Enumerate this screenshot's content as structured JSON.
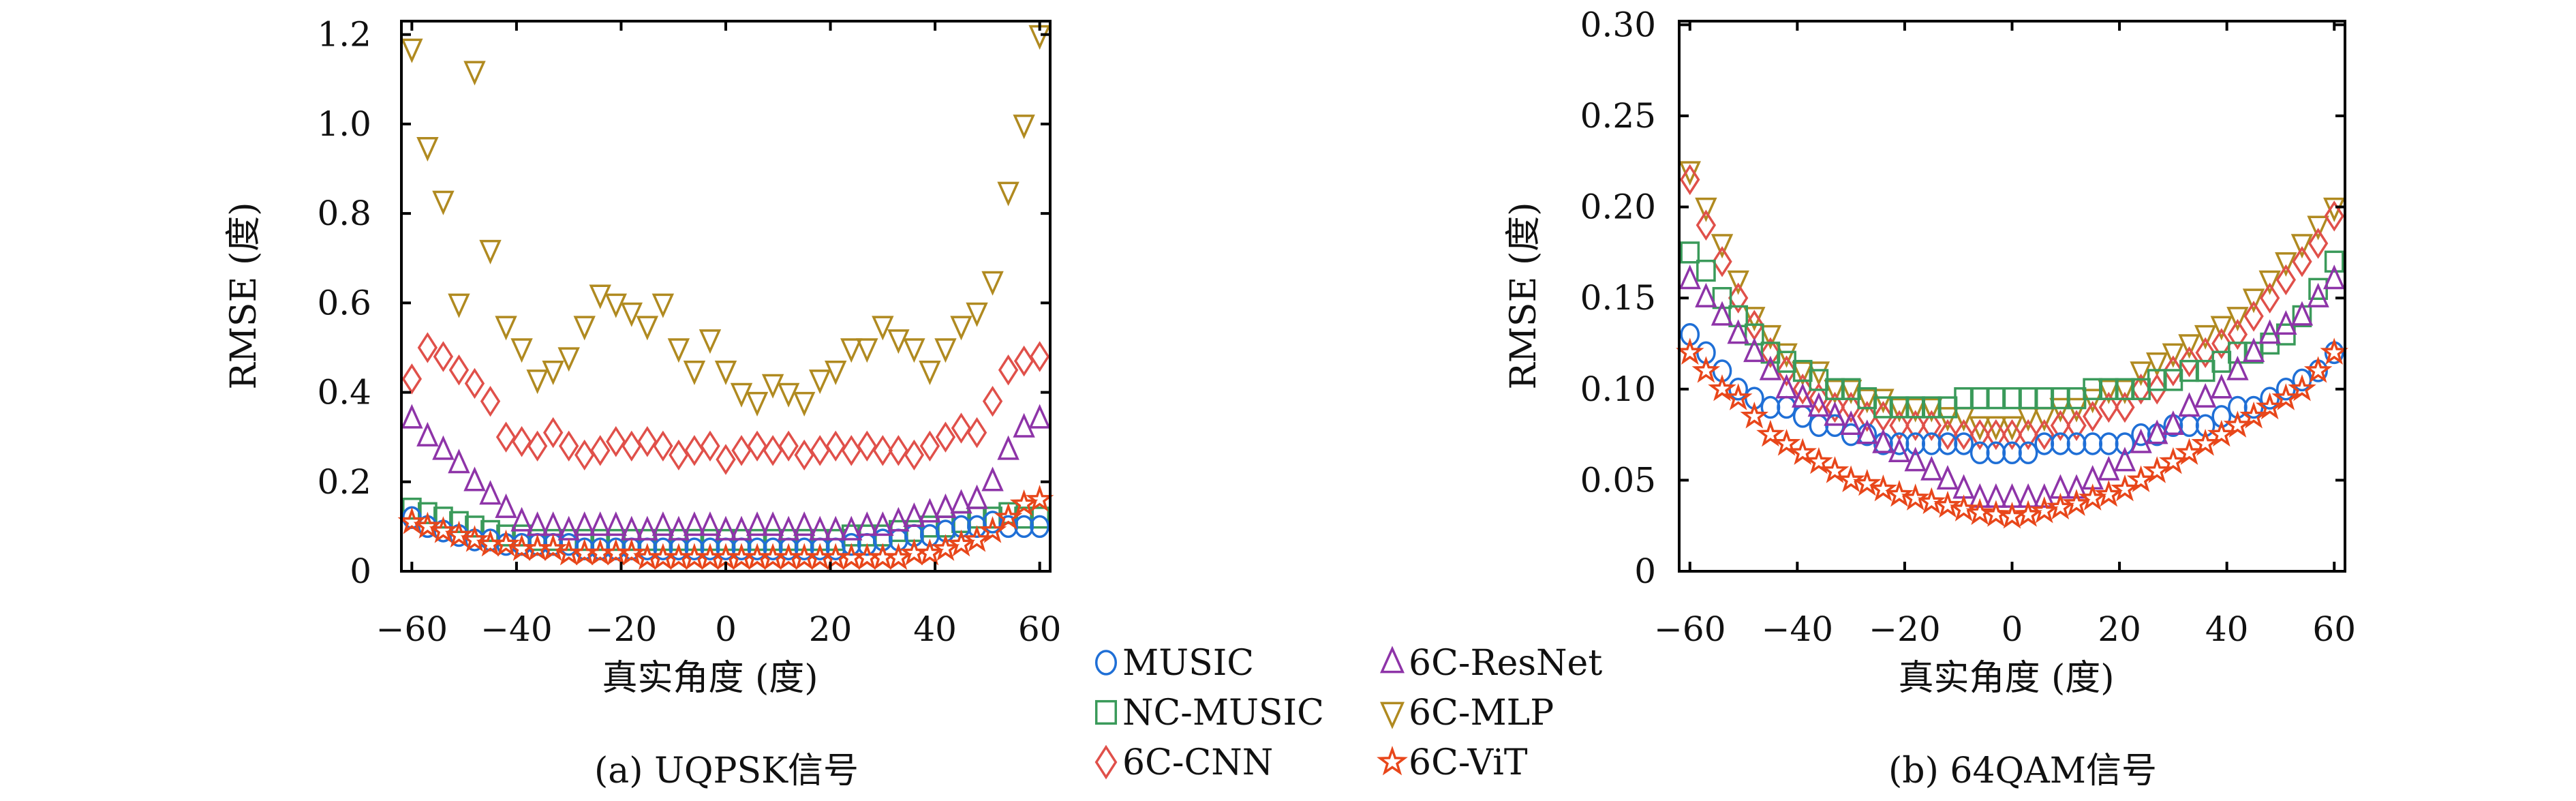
{
  "colors": {
    "MUSIC": "#1f6fd6",
    "NC-MUSIC": "#3a9a5a",
    "6C-CNN": "#e0504a",
    "6C-ResNet": "#8e34a8",
    "6C-MLP": "#b08a20",
    "6C-ViT": "#e8461a"
  },
  "legend": [
    {
      "name": "MUSIC",
      "marker": "circle"
    },
    {
      "name": "NC-MUSIC",
      "marker": "square"
    },
    {
      "name": "6C-CNN",
      "marker": "diamond"
    },
    {
      "name": "6C-ResNet",
      "marker": "triangle-up"
    },
    {
      "name": "6C-MLP",
      "marker": "triangle-down"
    },
    {
      "name": "6C-ViT",
      "marker": "star"
    }
  ],
  "chart_data": [
    {
      "type": "scatter",
      "caption": "(a) UQPSK信号",
      "xlabel": "真实角度 (度)",
      "ylabel": "RMSE (度)",
      "xlim": [
        -62,
        62
      ],
      "ylim": [
        0,
        1.23
      ],
      "xticks": [
        -60,
        -40,
        -20,
        0,
        20,
        40,
        60
      ],
      "xtick_labels": [
        "−60",
        "−40",
        "−20",
        "0",
        "20",
        "40",
        "60"
      ],
      "yticks": [
        0,
        0.2,
        0.4,
        0.6,
        0.8,
        1.0,
        1.2
      ],
      "ytick_labels": [
        "0",
        "0.2",
        "0.4",
        "0.6",
        "0.8",
        "1.0",
        "1.2"
      ],
      "x": [
        -60,
        -57,
        -54,
        -51,
        -48,
        -45,
        -42,
        -39,
        -36,
        -33,
        -30,
        -27,
        -24,
        -21,
        -18,
        -15,
        -12,
        -9,
        -6,
        -3,
        0,
        3,
        6,
        9,
        12,
        15,
        18,
        21,
        24,
        27,
        30,
        33,
        36,
        39,
        42,
        45,
        48,
        51,
        54,
        57,
        60
      ],
      "series": [
        {
          "name": "MUSIC",
          "values": [
            0.12,
            0.1,
            0.09,
            0.08,
            0.07,
            0.07,
            0.06,
            0.06,
            0.06,
            0.06,
            0.06,
            0.05,
            0.05,
            0.05,
            0.05,
            0.05,
            0.05,
            0.05,
            0.05,
            0.05,
            0.05,
            0.05,
            0.05,
            0.05,
            0.05,
            0.05,
            0.05,
            0.05,
            0.06,
            0.06,
            0.07,
            0.07,
            0.08,
            0.08,
            0.09,
            0.1,
            0.1,
            0.11,
            0.1,
            0.1,
            0.1
          ]
        },
        {
          "name": "NC-MUSIC",
          "values": [
            0.14,
            0.13,
            0.12,
            0.11,
            0.1,
            0.09,
            0.08,
            0.08,
            0.07,
            0.07,
            0.07,
            0.07,
            0.07,
            0.07,
            0.07,
            0.07,
            0.07,
            0.07,
            0.07,
            0.07,
            0.07,
            0.07,
            0.07,
            0.07,
            0.07,
            0.07,
            0.07,
            0.07,
            0.08,
            0.08,
            0.08,
            0.09,
            0.09,
            0.1,
            0.1,
            0.11,
            0.12,
            0.12,
            0.13,
            0.12,
            0.12
          ]
        },
        {
          "name": "6C-CNN",
          "values": [
            0.43,
            0.5,
            0.48,
            0.45,
            0.42,
            0.38,
            0.3,
            0.29,
            0.28,
            0.31,
            0.28,
            0.26,
            0.27,
            0.29,
            0.28,
            0.29,
            0.28,
            0.26,
            0.27,
            0.28,
            0.25,
            0.27,
            0.28,
            0.27,
            0.28,
            0.26,
            0.27,
            0.28,
            0.27,
            0.28,
            0.27,
            0.27,
            0.26,
            0.28,
            0.3,
            0.32,
            0.31,
            0.38,
            0.45,
            0.47,
            0.48
          ]
        },
        {
          "name": "6C-ResNet",
          "values": [
            0.34,
            0.3,
            0.27,
            0.24,
            0.2,
            0.17,
            0.14,
            0.11,
            0.1,
            0.1,
            0.09,
            0.1,
            0.1,
            0.1,
            0.09,
            0.09,
            0.1,
            0.09,
            0.1,
            0.1,
            0.09,
            0.09,
            0.1,
            0.1,
            0.09,
            0.1,
            0.09,
            0.09,
            0.09,
            0.1,
            0.1,
            0.11,
            0.12,
            0.13,
            0.14,
            0.15,
            0.16,
            0.2,
            0.27,
            0.32,
            0.34
          ]
        },
        {
          "name": "6C-MLP",
          "values": [
            1.17,
            0.95,
            0.83,
            0.6,
            1.12,
            0.72,
            0.55,
            0.5,
            0.43,
            0.45,
            0.48,
            0.55,
            0.62,
            0.6,
            0.58,
            0.55,
            0.6,
            0.5,
            0.45,
            0.52,
            0.45,
            0.4,
            0.38,
            0.42,
            0.4,
            0.38,
            0.43,
            0.45,
            0.5,
            0.5,
            0.55,
            0.52,
            0.5,
            0.45,
            0.5,
            0.55,
            0.58,
            0.65,
            0.85,
            1.0,
            1.2
          ]
        },
        {
          "name": "6C-ViT",
          "values": [
            0.11,
            0.1,
            0.09,
            0.08,
            0.07,
            0.06,
            0.06,
            0.05,
            0.05,
            0.05,
            0.04,
            0.04,
            0.04,
            0.04,
            0.04,
            0.03,
            0.03,
            0.03,
            0.03,
            0.03,
            0.03,
            0.03,
            0.03,
            0.03,
            0.03,
            0.03,
            0.03,
            0.03,
            0.03,
            0.03,
            0.03,
            0.03,
            0.04,
            0.04,
            0.05,
            0.06,
            0.07,
            0.09,
            0.12,
            0.15,
            0.16
          ]
        }
      ]
    },
    {
      "type": "scatter",
      "caption": "(b) 64QAM信号",
      "xlabel": "真实角度 (度)",
      "ylabel": "RMSE (度)",
      "xlim": [
        -62,
        62
      ],
      "ylim": [
        0,
        0.302
      ],
      "xticks": [
        -60,
        -40,
        -20,
        0,
        20,
        40,
        60
      ],
      "xtick_labels": [
        "−60",
        "−40",
        "−20",
        "0",
        "20",
        "40",
        "60"
      ],
      "yticks": [
        0,
        0.05,
        0.1,
        0.15,
        0.2,
        0.25,
        0.3
      ],
      "ytick_labels": [
        "0",
        "0.05",
        "0.10",
        "0.15",
        "0.20",
        "0.25",
        "0.30"
      ],
      "x": [
        -60,
        -57,
        -54,
        -51,
        -48,
        -45,
        -42,
        -39,
        -36,
        -33,
        -30,
        -27,
        -24,
        -21,
        -18,
        -15,
        -12,
        -9,
        -6,
        -3,
        0,
        3,
        6,
        9,
        12,
        15,
        18,
        21,
        24,
        27,
        30,
        33,
        36,
        39,
        42,
        45,
        48,
        51,
        54,
        57,
        60
      ],
      "series": [
        {
          "name": "MUSIC",
          "values": [
            0.13,
            0.12,
            0.11,
            0.1,
            0.095,
            0.09,
            0.09,
            0.085,
            0.08,
            0.08,
            0.075,
            0.075,
            0.07,
            0.07,
            0.07,
            0.07,
            0.07,
            0.07,
            0.065,
            0.065,
            0.065,
            0.065,
            0.07,
            0.07,
            0.07,
            0.07,
            0.07,
            0.07,
            0.075,
            0.075,
            0.08,
            0.08,
            0.08,
            0.085,
            0.09,
            0.09,
            0.095,
            0.1,
            0.105,
            0.11,
            0.12
          ]
        },
        {
          "name": "NC-MUSIC",
          "values": [
            0.175,
            0.165,
            0.15,
            0.14,
            0.13,
            0.12,
            0.115,
            0.11,
            0.105,
            0.1,
            0.1,
            0.095,
            0.09,
            0.09,
            0.09,
            0.09,
            0.09,
            0.095,
            0.095,
            0.095,
            0.095,
            0.095,
            0.095,
            0.095,
            0.095,
            0.1,
            0.1,
            0.1,
            0.1,
            0.105,
            0.105,
            0.11,
            0.11,
            0.115,
            0.12,
            0.12,
            0.125,
            0.13,
            0.14,
            0.155,
            0.17
          ]
        },
        {
          "name": "6C-CNN",
          "values": [
            0.215,
            0.19,
            0.17,
            0.15,
            0.135,
            0.12,
            0.11,
            0.1,
            0.095,
            0.09,
            0.09,
            0.085,
            0.085,
            0.08,
            0.08,
            0.08,
            0.075,
            0.075,
            0.075,
            0.075,
            0.075,
            0.075,
            0.075,
            0.08,
            0.08,
            0.085,
            0.09,
            0.09,
            0.1,
            0.1,
            0.11,
            0.115,
            0.12,
            0.125,
            0.13,
            0.14,
            0.15,
            0.16,
            0.17,
            0.18,
            0.195
          ]
        },
        {
          "name": "6C-ResNet",
          "values": [
            0.16,
            0.15,
            0.14,
            0.13,
            0.12,
            0.11,
            0.1,
            0.095,
            0.09,
            0.085,
            0.08,
            0.075,
            0.07,
            0.065,
            0.06,
            0.055,
            0.05,
            0.045,
            0.04,
            0.04,
            0.04,
            0.04,
            0.04,
            0.045,
            0.045,
            0.05,
            0.055,
            0.06,
            0.07,
            0.075,
            0.08,
            0.09,
            0.095,
            0.1,
            0.11,
            0.12,
            0.13,
            0.135,
            0.14,
            0.15,
            0.16
          ]
        },
        {
          "name": "6C-MLP",
          "values": [
            0.22,
            0.2,
            0.18,
            0.16,
            0.14,
            0.13,
            0.12,
            0.11,
            0.11,
            0.1,
            0.1,
            0.095,
            0.095,
            0.09,
            0.09,
            0.09,
            0.085,
            0.085,
            0.08,
            0.08,
            0.08,
            0.085,
            0.085,
            0.09,
            0.09,
            0.095,
            0.1,
            0.1,
            0.11,
            0.115,
            0.12,
            0.125,
            0.13,
            0.135,
            0.14,
            0.15,
            0.16,
            0.17,
            0.18,
            0.19,
            0.2
          ]
        },
        {
          "name": "6C-ViT",
          "values": [
            0.12,
            0.11,
            0.1,
            0.095,
            0.085,
            0.075,
            0.07,
            0.065,
            0.06,
            0.055,
            0.05,
            0.048,
            0.045,
            0.042,
            0.04,
            0.038,
            0.036,
            0.034,
            0.032,
            0.031,
            0.03,
            0.031,
            0.033,
            0.035,
            0.037,
            0.04,
            0.042,
            0.045,
            0.05,
            0.055,
            0.06,
            0.065,
            0.07,
            0.075,
            0.08,
            0.085,
            0.09,
            0.095,
            0.1,
            0.11,
            0.12
          ]
        }
      ]
    }
  ]
}
